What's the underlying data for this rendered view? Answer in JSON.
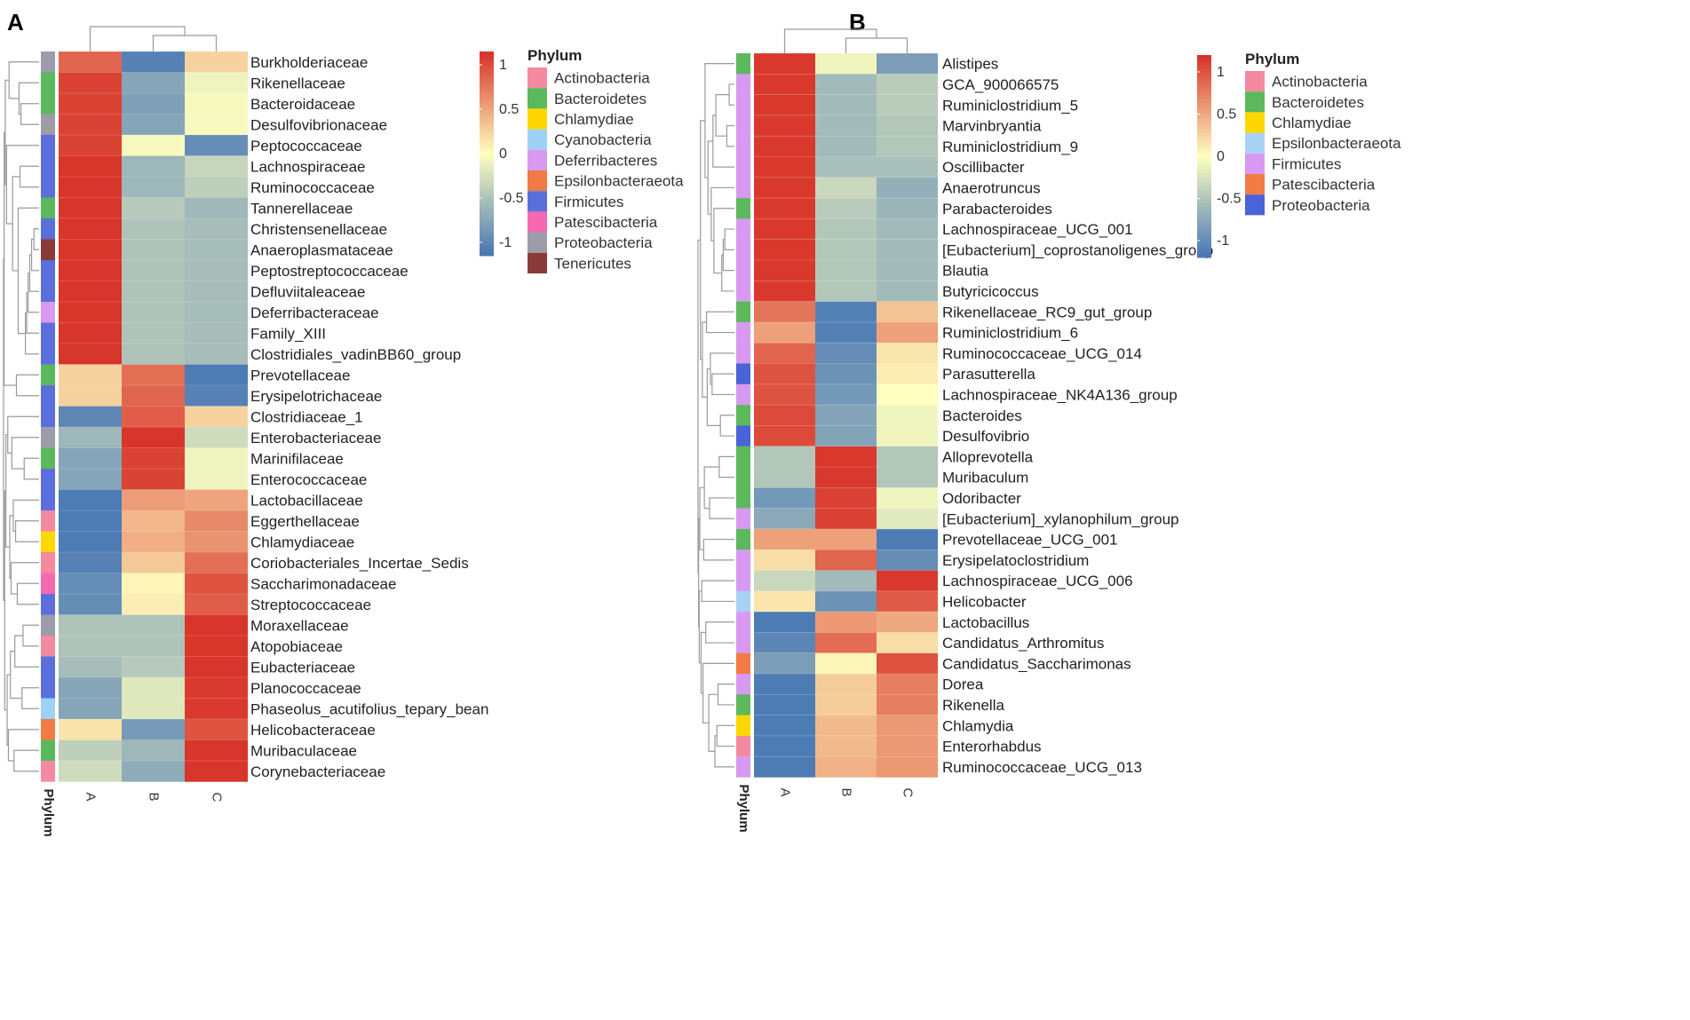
{
  "figure": {
    "colors": {
      "scale_low": "#4575b4",
      "scale_mid": "#ffffbf",
      "scale_high": "#d73027",
      "phylum": {
        "Actinobacteria": "#f48aa0",
        "Bacteroidetes": "#5cb85c",
        "Chlamydiae": "#ffd700",
        "Cyanobacteria": "#9fd0f5",
        "Deferribacteres": "#d89af0",
        "Epsilonbacteraeota": "#f27a45",
        "Epsilonbacteraeota_B": "#a8d2f5",
        "Firmicutes": "#5b6fdc",
        "Firmicutes_B": "#d89af0",
        "Patescibacteria": "#f668b0",
        "Patescibacteria_B": "#f27a45",
        "Proteobacteria": "#9c9caa",
        "Proteobacteria_B": "#4a63d8",
        "Tenericutes": "#8b3a3a"
      }
    }
  },
  "chart_data": [
    {
      "type": "heatmap",
      "panel": "A",
      "columns": [
        "A",
        "B",
        "C"
      ],
      "phylum_axis_label": "Phylum",
      "legend_title": "Phylum",
      "legend": [
        "Actinobacteria",
        "Bacteroidetes",
        "Chlamydiae",
        "Cyanobacteria",
        "Deferribacteres",
        "Epsilonbacteraeota",
        "Firmicutes",
        "Patescibacteria",
        "Proteobacteria",
        "Tenericutes"
      ],
      "legend_color_keys": [
        "Actinobacteria",
        "Bacteroidetes",
        "Chlamydiae",
        "Cyanobacteria",
        "Deferribacteres",
        "Epsilonbacteraeota",
        "Firmicutes",
        "Patescibacteria",
        "Proteobacteria",
        "Tenericutes"
      ],
      "scale": {
        "range": [
          -1.15,
          1.15
        ],
        "ticks": [
          "1",
          "0.5",
          "0",
          "-0.5",
          "-1"
        ],
        "tick_values": [
          1,
          0.5,
          0,
          -0.5,
          -1
        ]
      },
      "rows": [
        {
          "label": "Burkholderiaceae",
          "phylum": "Proteobacteria",
          "values": [
            0.85,
            -1.05,
            0.25
          ]
        },
        {
          "label": "Rikenellaceae",
          "phylum": "Bacteroidetes",
          "values": [
            1.05,
            -0.75,
            -0.1
          ]
        },
        {
          "label": "Bacteroidaceae",
          "phylum": "Bacteroidetes",
          "values": [
            1.05,
            -0.8,
            -0.05
          ]
        },
        {
          "label": "Desulfovibrionaceae",
          "phylum": "Proteobacteria",
          "values": [
            1.05,
            -0.75,
            -0.05
          ]
        },
        {
          "label": "Peptococcaceae",
          "phylum": "Firmicutes",
          "values": [
            1.05,
            -0.05,
            -0.95
          ]
        },
        {
          "label": "Lachnospiraceae",
          "phylum": "Firmicutes",
          "values": [
            1.12,
            -0.6,
            -0.35
          ]
        },
        {
          "label": "Ruminococcaceae",
          "phylum": "Firmicutes",
          "values": [
            1.12,
            -0.6,
            -0.4
          ]
        },
        {
          "label": "Tannerellaceae",
          "phylum": "Bacteroidetes",
          "values": [
            1.12,
            -0.45,
            -0.6
          ]
        },
        {
          "label": "Christensenellaceae",
          "phylum": "Firmicutes",
          "values": [
            1.12,
            -0.5,
            -0.55
          ]
        },
        {
          "label": "Anaeroplasmataceae",
          "phylum": "Tenericutes",
          "values": [
            1.12,
            -0.5,
            -0.55
          ]
        },
        {
          "label": "Peptostreptococcaceae",
          "phylum": "Firmicutes",
          "values": [
            1.12,
            -0.5,
            -0.55
          ]
        },
        {
          "label": "Defluviitaleaceae",
          "phylum": "Firmicutes",
          "values": [
            1.12,
            -0.5,
            -0.55
          ]
        },
        {
          "label": "Deferribacteraceae",
          "phylum": "Deferribacteres",
          "values": [
            1.12,
            -0.5,
            -0.55
          ]
        },
        {
          "label": "Family_XIII",
          "phylum": "Firmicutes",
          "values": [
            1.12,
            -0.5,
            -0.55
          ]
        },
        {
          "label": "Clostridiales_vadinBB60_group",
          "phylum": "Firmicutes",
          "values": [
            1.12,
            -0.5,
            -0.55
          ]
        },
        {
          "label": "Prevotellaceae",
          "phylum": "Bacteroidetes",
          "values": [
            0.25,
            0.8,
            -1.1
          ]
        },
        {
          "label": "Erysipelotrichaceae",
          "phylum": "Firmicutes",
          "values": [
            0.25,
            0.85,
            -1.05
          ]
        },
        {
          "label": "Clostridiaceae_1",
          "phylum": "Firmicutes",
          "values": [
            -1.0,
            0.9,
            0.25
          ]
        },
        {
          "label": "Enterobacteriaceae",
          "phylum": "Proteobacteria",
          "values": [
            -0.6,
            1.12,
            -0.3
          ]
        },
        {
          "label": "Marinifilaceae",
          "phylum": "Bacteroidetes",
          "values": [
            -0.75,
            1.05,
            -0.1
          ]
        },
        {
          "label": "Enterococcaceae",
          "phylum": "Firmicutes",
          "values": [
            -0.75,
            1.05,
            -0.1
          ]
        },
        {
          "label": "Lactobacillaceae",
          "phylum": "Firmicutes",
          "values": [
            -1.1,
            0.55,
            0.5
          ]
        },
        {
          "label": "Eggerthellaceae",
          "phylum": "Actinobacteria",
          "values": [
            -1.1,
            0.4,
            0.65
          ]
        },
        {
          "label": "Chlamydiaceae",
          "phylum": "Chlamydiae",
          "values": [
            -1.1,
            0.45,
            0.6
          ]
        },
        {
          "label": "Coriobacteriales_Incertae_Sedis",
          "phylum": "Actinobacteria",
          "values": [
            -1.05,
            0.3,
            0.8
          ]
        },
        {
          "label": "Saccharimonadaceae",
          "phylum": "Patescibacteria",
          "values": [
            -0.95,
            0.05,
            0.95
          ]
        },
        {
          "label": "Streptococcaceae",
          "phylum": "Firmicutes",
          "values": [
            -0.95,
            0.1,
            0.9
          ]
        },
        {
          "label": "Moraxellaceae",
          "phylum": "Proteobacteria",
          "values": [
            -0.5,
            -0.5,
            1.12
          ]
        },
        {
          "label": "Atopobiaceae",
          "phylum": "Actinobacteria",
          "values": [
            -0.5,
            -0.5,
            1.12
          ]
        },
        {
          "label": "Eubacteriaceae",
          "phylum": "Firmicutes",
          "values": [
            -0.55,
            -0.45,
            1.12
          ]
        },
        {
          "label": "Planococcaceae",
          "phylum": "Firmicutes",
          "values": [
            -0.75,
            -0.2,
            1.1
          ]
        },
        {
          "label": "Phaseolus_acutifolius_tepary_bean",
          "phylum": "Cyanobacteria",
          "values": [
            -0.75,
            -0.2,
            1.1
          ]
        },
        {
          "label": "Helicobacteraceae",
          "phylum": "Epsilonbacteraeota",
          "values": [
            0.15,
            -0.85,
            0.95
          ]
        },
        {
          "label": "Muribaculaceae",
          "phylum": "Bacteroidetes",
          "values": [
            -0.4,
            -0.6,
            1.12
          ]
        },
        {
          "label": "Corynebacteriaceae",
          "phylum": "Actinobacteria",
          "values": [
            -0.3,
            -0.7,
            1.12
          ]
        }
      ]
    },
    {
      "type": "heatmap",
      "panel": "B",
      "columns": [
        "A",
        "B",
        "C"
      ],
      "phylum_axis_label": "Phylum",
      "legend_title": "Phylum",
      "legend": [
        "Actinobacteria",
        "Bacteroidetes",
        "Chlamydiae",
        "Epsilonbacteraeota",
        "Firmicutes",
        "Patescibacteria",
        "Proteobacteria"
      ],
      "legend_color_keys": [
        "Actinobacteria",
        "Bacteroidetes",
        "Chlamydiae",
        "Epsilonbacteraeota_B",
        "Firmicutes_B",
        "Patescibacteria_B",
        "Proteobacteria_B"
      ],
      "scale": {
        "range": [
          -1.2,
          1.2
        ],
        "ticks": [
          "1",
          "0.5",
          "0",
          "-0.5",
          "-1"
        ],
        "tick_values": [
          1,
          0.5,
          0,
          -0.5,
          -1
        ]
      },
      "rows": [
        {
          "label": "Alistipes",
          "phylum": "Bacteroidetes",
          "values": [
            1.15,
            -0.1,
            -0.85
          ]
        },
        {
          "label": "GCA_900066575",
          "phylum": "Firmicutes_B",
          "values": [
            1.15,
            -0.6,
            -0.45
          ]
        },
        {
          "label": "Ruminiclostridium_5",
          "phylum": "Firmicutes_B",
          "values": [
            1.15,
            -0.6,
            -0.45
          ]
        },
        {
          "label": "Marvinbryantia",
          "phylum": "Firmicutes_B",
          "values": [
            1.15,
            -0.6,
            -0.5
          ]
        },
        {
          "label": "Ruminiclostridium_9",
          "phylum": "Firmicutes_B",
          "values": [
            1.15,
            -0.6,
            -0.5
          ]
        },
        {
          "label": "Oscillibacter",
          "phylum": "Firmicutes_B",
          "values": [
            1.15,
            -0.55,
            -0.55
          ]
        },
        {
          "label": "Anaerotruncus",
          "phylum": "Firmicutes_B",
          "values": [
            1.15,
            -0.35,
            -0.7
          ]
        },
        {
          "label": "Parabacteroides",
          "phylum": "Bacteroidetes",
          "values": [
            1.15,
            -0.45,
            -0.65
          ]
        },
        {
          "label": "Lachnospiraceae_UCG_001",
          "phylum": "Firmicutes_B",
          "values": [
            1.15,
            -0.5,
            -0.6
          ]
        },
        {
          "label": "[Eubacterium]_coprostanoligenes_group",
          "phylum": "Firmicutes_B",
          "values": [
            1.15,
            -0.5,
            -0.6
          ]
        },
        {
          "label": "Blautia",
          "phylum": "Firmicutes_B",
          "values": [
            1.15,
            -0.5,
            -0.6
          ]
        },
        {
          "label": "Butyricicoccus",
          "phylum": "Firmicutes_B",
          "values": [
            1.15,
            -0.5,
            -0.6
          ]
        },
        {
          "label": "Rikenellaceae_RC9_gut_group",
          "phylum": "Bacteroidetes",
          "values": [
            0.8,
            -1.1,
            0.35
          ]
        },
        {
          "label": "Ruminiclostridium_6",
          "phylum": "Firmicutes_B",
          "values": [
            0.55,
            -1.1,
            0.55
          ]
        },
        {
          "label": "Ruminococcaceae_UCG_014",
          "phylum": "Firmicutes_B",
          "values": [
            0.9,
            -1.0,
            0.15
          ]
        },
        {
          "label": "Parasutterella",
          "phylum": "Proteobacteria_B",
          "values": [
            1.0,
            -0.95,
            0.1
          ]
        },
        {
          "label": "Lachnospiraceae_NK4A136_group",
          "phylum": "Firmicutes_B",
          "values": [
            1.0,
            -0.9,
            0.0
          ]
        },
        {
          "label": "Bacteroides",
          "phylum": "Bacteroidetes",
          "values": [
            1.05,
            -0.8,
            -0.1
          ]
        },
        {
          "label": "Desulfovibrio",
          "phylum": "Proteobacteria_B",
          "values": [
            1.05,
            -0.8,
            -0.1
          ]
        },
        {
          "label": "Alloprevotella",
          "phylum": "Bacteroidetes",
          "values": [
            -0.5,
            1.15,
            -0.5
          ]
        },
        {
          "label": "Muribaculum",
          "phylum": "Bacteroidetes",
          "values": [
            -0.5,
            1.15,
            -0.5
          ]
        },
        {
          "label": "Odoribacter",
          "phylum": "Bacteroidetes",
          "values": [
            -0.9,
            1.1,
            -0.1
          ]
        },
        {
          "label": "[Eubacterium]_xylanophilum_group",
          "phylum": "Firmicutes_B",
          "values": [
            -0.75,
            1.1,
            -0.2
          ]
        },
        {
          "label": "Prevotellaceae_UCG_001",
          "phylum": "Bacteroidetes",
          "values": [
            0.55,
            0.55,
            -1.15
          ]
        },
        {
          "label": "Erysipelatoclostridium",
          "phylum": "Firmicutes_B",
          "values": [
            0.2,
            0.9,
            -1.0
          ]
        },
        {
          "label": "Lachnospiraceae_UCG_006",
          "phylum": "Firmicutes_B",
          "values": [
            -0.35,
            -0.6,
            1.15
          ]
        },
        {
          "label": "Helicobacter",
          "phylum": "Epsilonbacteraeota_B",
          "values": [
            0.15,
            -0.95,
            0.95
          ]
        },
        {
          "label": "Lactobacillus",
          "phylum": "Firmicutes_B",
          "values": [
            -1.15,
            0.6,
            0.5
          ]
        },
        {
          "label": "Candidatus_Arthromitus",
          "phylum": "Firmicutes_B",
          "values": [
            -1.05,
            0.85,
            0.2
          ]
        },
        {
          "label": "Candidatus_Saccharimonas",
          "phylum": "Patescibacteria_B",
          "values": [
            -0.85,
            0.05,
            1.0
          ]
        },
        {
          "label": "Dorea",
          "phylum": "Firmicutes_B",
          "values": [
            -1.15,
            0.3,
            0.75
          ]
        },
        {
          "label": "Rikenella",
          "phylum": "Bacteroidetes",
          "values": [
            -1.15,
            0.3,
            0.75
          ]
        },
        {
          "label": "Chlamydia",
          "phylum": "Chlamydiae",
          "values": [
            -1.15,
            0.4,
            0.6
          ]
        },
        {
          "label": "Enterorhabdus",
          "phylum": "Actinobacteria",
          "values": [
            -1.15,
            0.4,
            0.6
          ]
        },
        {
          "label": "Ruminococcaceae_UCG_013",
          "phylum": "Firmicutes_B",
          "values": [
            -1.15,
            0.45,
            0.6
          ]
        }
      ]
    }
  ]
}
